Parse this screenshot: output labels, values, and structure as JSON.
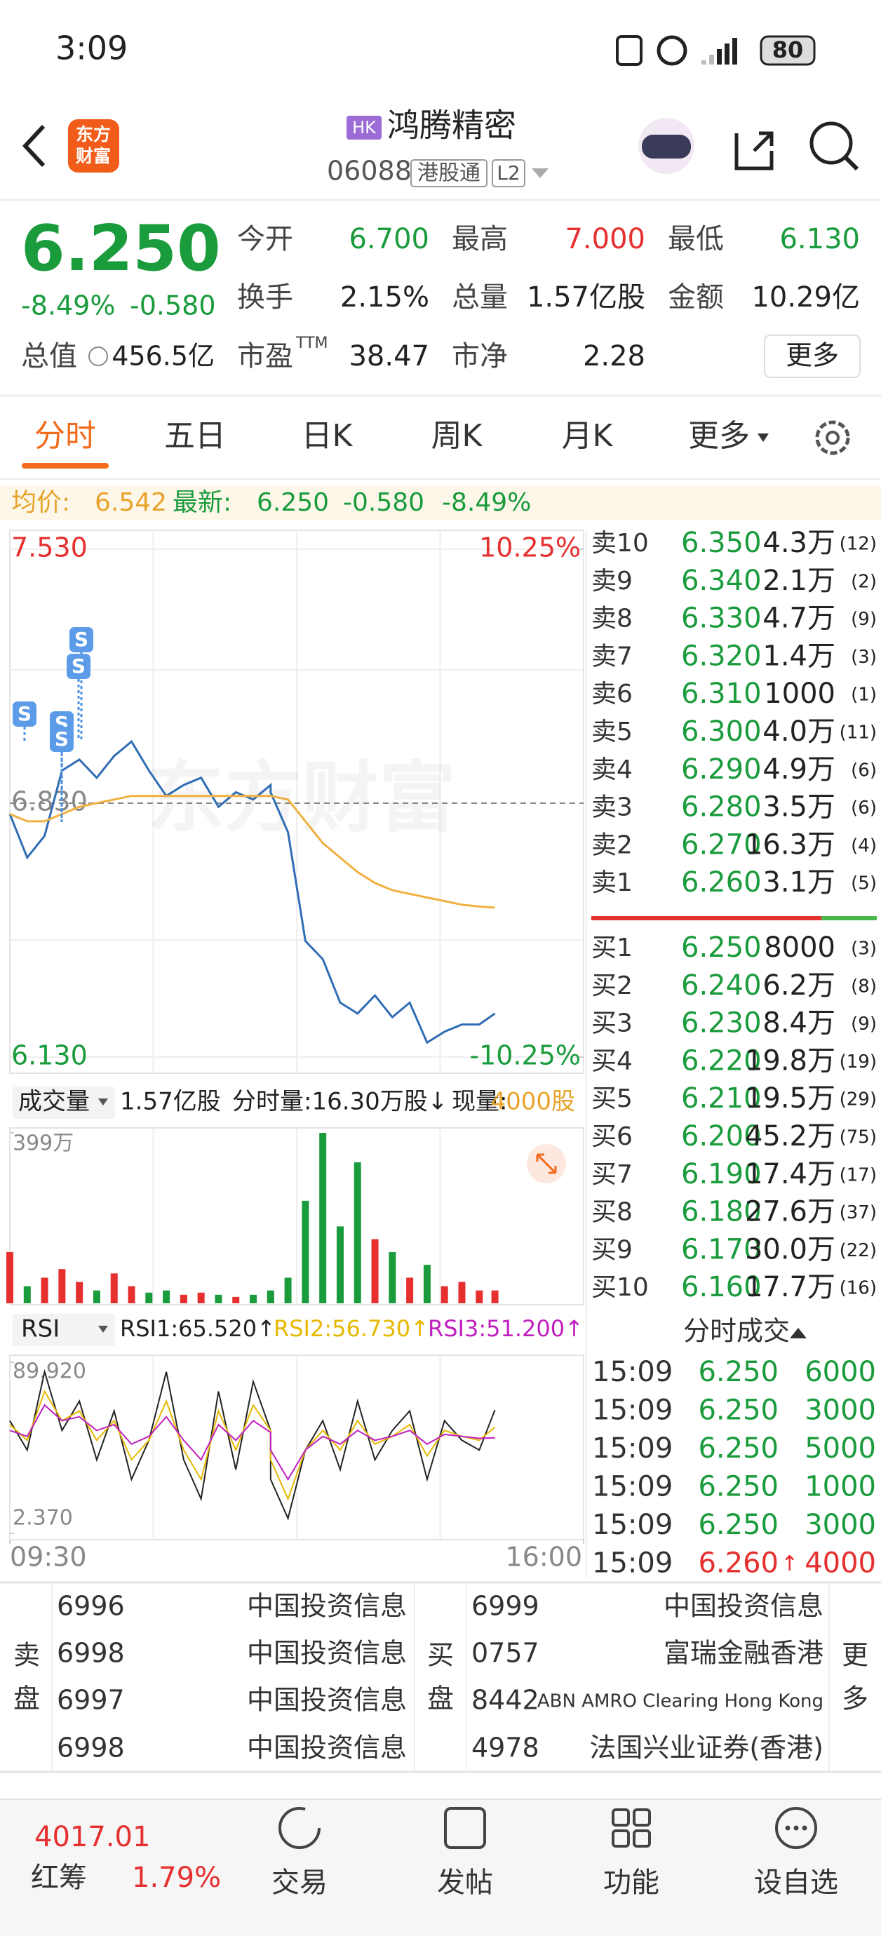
{
  "status_bar": {
    "time": "3:09",
    "battery": "80"
  },
  "header": {
    "logo": [
      "东方",
      "财富"
    ],
    "market": "HK",
    "name": "鸿腾精密",
    "code": "06088",
    "connect": "港股通",
    "level": "L2"
  },
  "quote": {
    "price": "6.250",
    "change_pct": "-8.49%",
    "change": "-0.580",
    "total_value": {
      "label": "总值",
      "value": "456.5亿"
    },
    "stats": [
      [
        {
          "label": "今开",
          "value": "6.700",
          "color": "#1a9b3c"
        },
        {
          "label": "最高",
          "value": "7.000",
          "color": "#e62f2f"
        },
        {
          "label": "最低",
          "value": "6.130",
          "color": "#1a9b3c"
        }
      ],
      [
        {
          "label": "换手",
          "value": "2.15%"
        },
        {
          "label": "总量",
          "value": "1.57亿股"
        },
        {
          "label": "金额",
          "value": "10.29亿"
        }
      ],
      [
        {
          "label": "市盈",
          "sup": "TTM",
          "value": "38.47"
        },
        {
          "label": "市净",
          "value": "2.28"
        }
      ]
    ],
    "more": "更多"
  },
  "tabs": {
    "items": [
      "分时",
      "五日",
      "日K",
      "周K",
      "月K",
      "更多"
    ],
    "active": 0
  },
  "info_bar": {
    "avg_label": "均价:",
    "avg": "6.542",
    "last_label": "最新:",
    "last": "6.250",
    "change": "-0.580",
    "change_pct": "-8.49%"
  },
  "price_chart": {
    "type": "line",
    "watermark": "东方财富",
    "signal_label": "S",
    "x": [
      "09:30",
      "09:40",
      "09:50",
      "10:00",
      "10:10",
      "10:20",
      "10:30",
      "10:40",
      "10:50",
      "11:00",
      "11:10",
      "11:20",
      "11:30",
      "11:40",
      "11:50",
      "12:00",
      "13:00",
      "13:10",
      "13:20",
      "13:30",
      "13:40",
      "13:50",
      "14:00",
      "14:10",
      "14:20",
      "14:30",
      "14:40",
      "14:50",
      "15:00",
      "15:09"
    ],
    "xlim": [
      "09:30",
      "16:00"
    ],
    "series": [
      {
        "color": "#2f6db5",
        "values": [
          6.8,
          6.68,
          6.74,
          6.92,
          6.95,
          6.9,
          6.96,
          7.0,
          6.92,
          6.85,
          6.88,
          6.9,
          6.82,
          6.86,
          6.84,
          6.88,
          6.86,
          6.75,
          6.45,
          6.4,
          6.28,
          6.25,
          6.3,
          6.24,
          6.28,
          6.17,
          6.2,
          6.22,
          6.22,
          6.25
        ]
      },
      {
        "color": "#f0b040",
        "values": [
          6.8,
          6.78,
          6.78,
          6.8,
          6.82,
          6.83,
          6.84,
          6.85,
          6.85,
          6.85,
          6.85,
          6.85,
          6.85,
          6.85,
          6.85,
          6.85,
          6.85,
          6.84,
          6.78,
          6.72,
          6.68,
          6.64,
          6.61,
          6.59,
          6.58,
          6.57,
          6.56,
          6.55,
          6.545,
          6.542
        ]
      }
    ],
    "ylim": [
      6.13,
      7.53
    ],
    "yticks": [
      {
        "value": 7.53,
        "label": "7.530"
      },
      {
        "value": 6.83,
        "label": "6.830"
      },
      {
        "value": 6.13,
        "label": "6.130"
      }
    ],
    "y2lim": [
      -10.25,
      10.25
    ],
    "y2ticks": [
      {
        "value": 10.25,
        "label": "10.25%"
      },
      {
        "value": -10.25,
        "label": "-10.25%"
      }
    ]
  },
  "order_book": {
    "asks": [
      {
        "label": "卖10",
        "price": "6.350",
        "volume": "4.3万",
        "count": "(12)"
      },
      {
        "label": "卖9",
        "price": "6.340",
        "volume": "2.1万",
        "count": "(2)"
      },
      {
        "label": "卖8",
        "price": "6.330",
        "volume": "4.7万",
        "count": "(9)"
      },
      {
        "label": "卖7",
        "price": "6.320",
        "volume": "1.4万",
        "count": "(3)"
      },
      {
        "label": "卖6",
        "price": "6.310",
        "volume": "1000",
        "count": "(1)"
      },
      {
        "label": "卖5",
        "price": "6.300",
        "volume": "4.0万",
        "count": "(11)"
      },
      {
        "label": "卖4",
        "price": "6.290",
        "volume": "4.9万",
        "count": "(6)"
      },
      {
        "label": "卖3",
        "price": "6.280",
        "volume": "3.5万",
        "count": "(6)"
      },
      {
        "label": "卖2",
        "price": "6.270",
        "volume": "16.3万",
        "count": "(4)"
      },
      {
        "label": "卖1",
        "price": "6.260",
        "volume": "3.1万",
        "count": "(5)"
      }
    ],
    "bids": [
      {
        "label": "买1",
        "price": "6.250",
        "volume": "8000",
        "count": "(3)"
      },
      {
        "label": "买2",
        "price": "6.240",
        "volume": "6.2万",
        "count": "(8)"
      },
      {
        "label": "买3",
        "price": "6.230",
        "volume": "8.4万",
        "count": "(9)"
      },
      {
        "label": "买4",
        "price": "6.220",
        "volume": "19.8万",
        "count": "(19)"
      },
      {
        "label": "买5",
        "price": "6.210",
        "volume": "19.5万",
        "count": "(29)"
      },
      {
        "label": "买6",
        "price": "6.200",
        "volume": "45.2万",
        "count": "(75)"
      },
      {
        "label": "买7",
        "price": "6.190",
        "volume": "17.4万",
        "count": "(17)"
      },
      {
        "label": "买8",
        "price": "6.180",
        "volume": "27.6万",
        "count": "(37)"
      },
      {
        "label": "买9",
        "price": "6.170",
        "volume": "30.0万",
        "count": "(22)"
      },
      {
        "label": "买10",
        "price": "6.160",
        "volume": "17.7万",
        "count": "(16)"
      }
    ]
  },
  "volume_header": {
    "selector": "成交量",
    "total": "1.57亿股",
    "minute": "分时量:16.30万股↓",
    "current_label": "现量:",
    "current": "4000股"
  },
  "volume_chart": {
    "type": "bar",
    "x": [
      "09:30",
      "09:40",
      "09:50",
      "10:00",
      "10:10",
      "10:20",
      "10:30",
      "10:40",
      "10:50",
      "11:00",
      "11:10",
      "11:20",
      "11:30",
      "11:40",
      "11:50",
      "12:00",
      "13:00",
      "13:10",
      "13:20",
      "13:30",
      "13:40",
      "13:50",
      "14:00",
      "14:10",
      "14:20",
      "14:30",
      "14:40",
      "14:50",
      "15:00",
      "15:09"
    ],
    "xlim": [
      "09:30",
      "16:00"
    ],
    "series": [
      {
        "color": "#e62f2f",
        "values": [
          120,
          null,
          60,
          80,
          50,
          null,
          70,
          40,
          null,
          null,
          20,
          25,
          null,
          15,
          null,
          25,
          null,
          null,
          null,
          null,
          null,
          null,
          150,
          null,
          60,
          null,
          40,
          50,
          30,
          30
        ]
      },
      {
        "color": "#1a9b3c",
        "values": [
          null,
          40,
          null,
          null,
          null,
          30,
          null,
          null,
          25,
          30,
          null,
          null,
          20,
          null,
          20,
          null,
          30,
          60,
          240,
          399,
          180,
          330,
          null,
          120,
          null,
          90,
          null,
          null,
          null,
          null
        ]
      }
    ],
    "ylim": [
      0,
      399
    ],
    "yticks": [
      {
        "value": 399,
        "label": "399万"
      }
    ]
  },
  "rsi_header": {
    "selector": "RSI",
    "rsi1": "RSI1:65.520↑",
    "rsi2": "RSI2:56.730↑",
    "rsi3": "RSI3:51.200↑"
  },
  "rsi_chart": {
    "type": "line",
    "x": [
      "09:30",
      "09:40",
      "09:50",
      "10:00",
      "10:10",
      "10:20",
      "10:30",
      "10:40",
      "10:50",
      "11:00",
      "11:10",
      "11:20",
      "11:30",
      "11:40",
      "11:50",
      "12:00",
      "13:00",
      "13:10",
      "13:20",
      "13:30",
      "13:40",
      "13:50",
      "14:00",
      "14:10",
      "14:20",
      "14:30",
      "14:40",
      "14:50",
      "15:00",
      "15:09"
    ],
    "xlim": [
      "09:30",
      "16:00"
    ],
    "series": [
      {
        "color": "#222222",
        "values": [
          60,
          45,
          85,
          55,
          70,
          40,
          65,
          30,
          50,
          85,
          40,
          20,
          75,
          35,
          80,
          55,
          30,
          10,
          45,
          60,
          35,
          70,
          40,
          55,
          65,
          30,
          60,
          50,
          45,
          65.52
        ]
      },
      {
        "color": "#e6b800",
        "values": [
          58,
          50,
          75,
          60,
          65,
          50,
          60,
          40,
          50,
          70,
          45,
          30,
          65,
          45,
          68,
          55,
          40,
          20,
          45,
          55,
          45,
          60,
          48,
          52,
          58,
          42,
          55,
          52,
          50,
          56.73
        ]
      },
      {
        "color": "#c020c0",
        "values": [
          55,
          52,
          68,
          60,
          62,
          55,
          58,
          48,
          52,
          62,
          50,
          40,
          58,
          50,
          60,
          54,
          45,
          30,
          45,
          52,
          48,
          55,
          50,
          52,
          55,
          48,
          53,
          52,
          51,
          51.2
        ]
      }
    ],
    "ylim": [
      2.37,
      89.92
    ],
    "yticks": [
      {
        "value": 89.92,
        "label": "89.920"
      },
      {
        "value": 2.37,
        "label": "2.370"
      }
    ],
    "xticks": [
      "09:30",
      "16:00"
    ]
  },
  "trades": {
    "title": "分时成交",
    "rows": [
      {
        "time": "15:09",
        "price": "6.250",
        "volume": "6000"
      },
      {
        "time": "15:09",
        "price": "6.250",
        "volume": "3000"
      },
      {
        "time": "15:09",
        "price": "6.250",
        "volume": "5000"
      },
      {
        "time": "15:09",
        "price": "6.250",
        "volume": "1000"
      },
      {
        "time": "15:09",
        "price": "6.250",
        "volume": "3000"
      },
      {
        "time": "15:09",
        "price": "6.260",
        "arrow": "↑",
        "volume": "4000",
        "color": "#e62f2f"
      }
    ]
  },
  "brokers": {
    "sell_label": [
      "卖",
      "盘"
    ],
    "sell": [
      {
        "code": "6996",
        "name": "中国投资信息"
      },
      {
        "code": "6998",
        "name": "中国投资信息"
      },
      {
        "code": "6997",
        "name": "中国投资信息"
      },
      {
        "code": "6998",
        "name": "中国投资信息"
      }
    ],
    "buy_label": [
      "买",
      "盘"
    ],
    "buy": [
      {
        "code": "6999",
        "name": "中国投资信息"
      },
      {
        "code": "0757",
        "name": "富瑞金融香港"
      },
      {
        "code": "8442",
        "name": "ABN AMRO Clearing Hong Kong"
      },
      {
        "code": "4978",
        "name": "法国兴业证券(香港)"
      }
    ],
    "more": [
      "更",
      "多"
    ]
  },
  "bottom_bar": {
    "index_value": "4017.01",
    "index_name": "红筹",
    "index_change": "1.79%",
    "nav": [
      "交易",
      "发帖",
      "功能",
      "设自选"
    ]
  }
}
